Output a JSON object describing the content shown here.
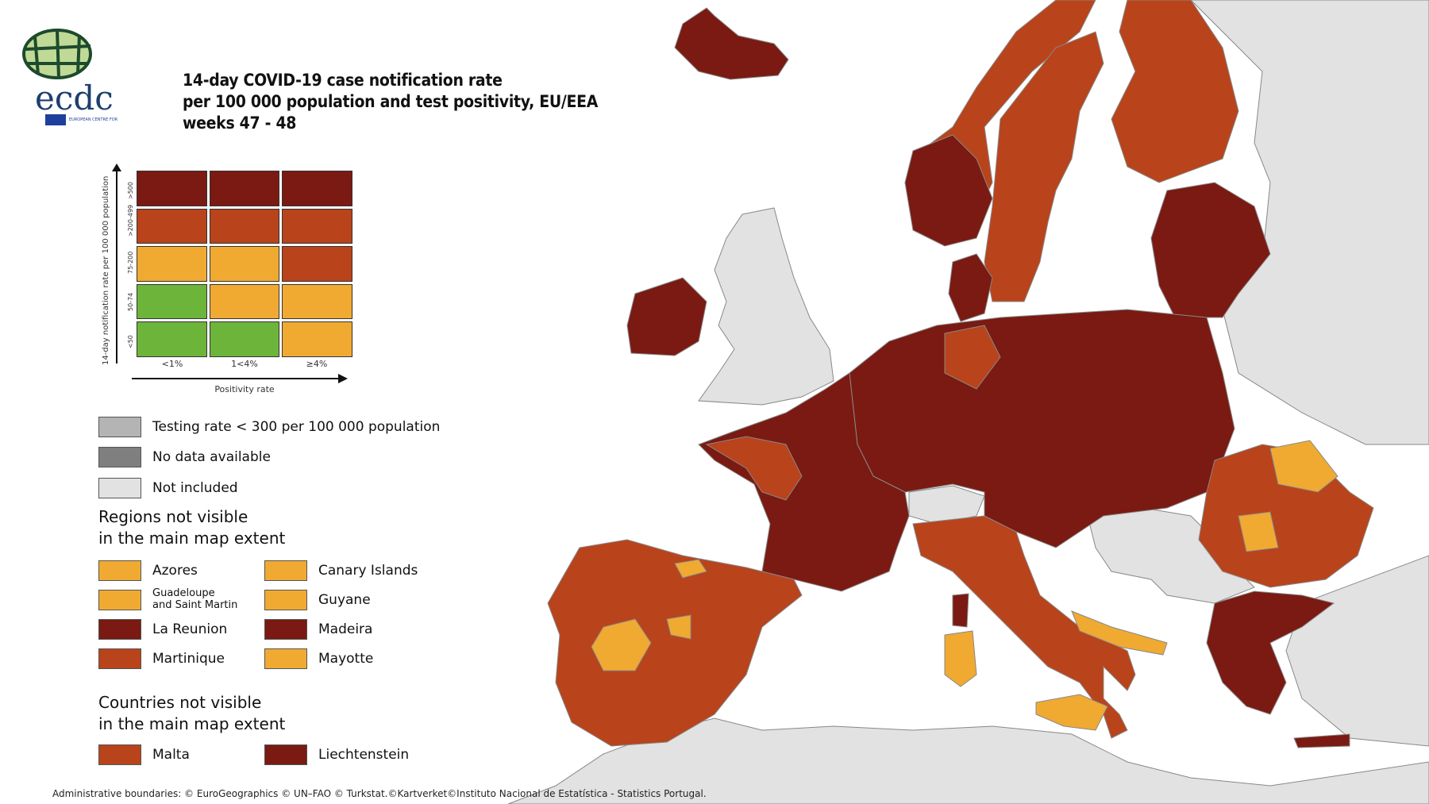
{
  "logo": {
    "text": "ecdc",
    "subtitle": "EUROPEAN CENTRE FOR DISEASE PREVENTION AND CONTROL"
  },
  "title": {
    "line1": "14-day COVID-19 case notification rate",
    "line2": "per 100 000 population and test positivity, EU/EEA",
    "line3": "weeks 47 - 48"
  },
  "colors": {
    "dark_red": "#7a1a12",
    "red_orange": "#b9431b",
    "yellow": "#f0aa32",
    "green": "#6db53a",
    "testing_grey": "#b4b4b4",
    "no_data_grey": "#7f7f7f",
    "not_included": "#e2e2e2"
  },
  "matrix": {
    "y_axis_label": "14-day notification rate per 100 000 population",
    "x_axis_label": "Positivity rate",
    "rows": [
      ">500",
      ">200-499",
      "75-200",
      "50-74",
      "<50"
    ],
    "cols": [
      "<1%",
      "1<4%",
      "≥4%"
    ],
    "cells": [
      [
        "dark_red",
        "dark_red",
        "dark_red"
      ],
      [
        "red_orange",
        "red_orange",
        "red_orange"
      ],
      [
        "yellow",
        "yellow",
        "red_orange"
      ],
      [
        "green",
        "yellow",
        "yellow"
      ],
      [
        "green",
        "green",
        "yellow"
      ]
    ]
  },
  "legend": {
    "testing": "Testing rate < 300 per 100 000 population",
    "no_data": "No data available",
    "not_included": "Not included",
    "regions_heading1": "Regions not visible",
    "regions_heading2": "in the main map extent",
    "regions": [
      {
        "name": "Azores",
        "color": "yellow"
      },
      {
        "name": "Canary Islands",
        "color": "yellow"
      },
      {
        "name": "Guadeloupe",
        "name2": "and Saint Martin",
        "color": "yellow"
      },
      {
        "name": "Guyane",
        "color": "yellow"
      },
      {
        "name": "La Reunion",
        "color": "dark_red"
      },
      {
        "name": "Madeira",
        "color": "dark_red"
      },
      {
        "name": "Martinique",
        "color": "red_orange"
      },
      {
        "name": "Mayotte",
        "color": "yellow"
      }
    ],
    "countries_heading1": "Countries not visible",
    "countries_heading2": "in the main map extent",
    "countries": [
      {
        "name": "Malta",
        "color": "red_orange"
      },
      {
        "name": "Liechtenstein",
        "color": "dark_red"
      }
    ]
  },
  "footer": "Administrative boundaries: © EuroGeographics © UN–FAO © Turkstat.©Kartverket©Instituto Nacional de Estatística - Statistics Portugal."
}
